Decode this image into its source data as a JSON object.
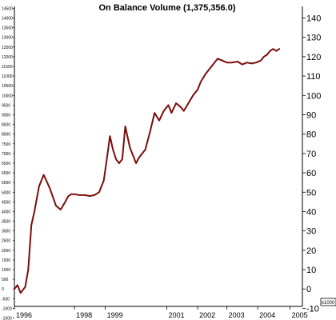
{
  "chart_data": {
    "type": "line",
    "title": "On Balance Volume (1,375,356.0)",
    "xlabel": "",
    "ylabel": "",
    "y_unit_label": "x1000",
    "ylim": [
      -9,
      146
    ],
    "xlim": [
      1996.0,
      2005.35
    ],
    "y_right_ticks": [
      -10,
      0,
      10,
      20,
      30,
      40,
      50,
      60,
      70,
      80,
      90,
      100,
      110,
      120,
      130,
      140
    ],
    "y_left_ticks": [
      "14500",
      "14000",
      "13500",
      "13000",
      "12500",
      "12000",
      "11500",
      "11000",
      "10500",
      "10000",
      "9500",
      "9000",
      "8500",
      "8000",
      "7500",
      "7000",
      "6500",
      "6000",
      "5500",
      "5000",
      "4500",
      "4000",
      "3500",
      "3000",
      "2500",
      "2000",
      "1500",
      "1000",
      "500",
      "0",
      "-500",
      "-1000",
      "-1500"
    ],
    "x_ticks": [
      "1996",
      "1998",
      "1999",
      "2001",
      "2002",
      "2003",
      "2004",
      "2005"
    ],
    "x_tick_values": [
      1996.0,
      1997.95,
      1998.95,
      2000.95,
      2001.95,
      2002.9,
      2003.9,
      2004.95
    ],
    "grid": false,
    "line_color": "#7a0c0c",
    "series": [
      {
        "x": [
          1996.0,
          1996.1,
          1996.2,
          1996.35,
          1996.45,
          1996.55,
          1996.65,
          1996.8,
          1996.95,
          1997.15,
          1997.35,
          1997.5,
          1997.65,
          1997.75,
          1997.85,
          1997.95,
          1998.1,
          1998.3,
          1998.45,
          1998.6,
          1998.75,
          1998.9,
          1999.0,
          1999.1,
          1999.2,
          1999.3,
          1999.4,
          1999.5,
          1999.6,
          1999.75,
          1999.85,
          1999.95,
          2000.05,
          2000.25,
          2000.4,
          2000.55,
          2000.7,
          2000.85,
          2001.0,
          2001.1,
          2001.25,
          2001.4,
          2001.5,
          2001.65,
          2001.8,
          2001.95,
          2002.05,
          2002.2,
          2002.4,
          2002.6,
          2002.75,
          2002.9,
          2003.05,
          2003.25,
          2003.4,
          2003.55,
          2003.7,
          2003.85,
          2004.0,
          2004.1,
          2004.2,
          2004.3,
          2004.4,
          2004.5,
          2004.6
        ],
        "values": [
          0,
          2,
          -2,
          1,
          10,
          33,
          40,
          53,
          59,
          52,
          43,
          41,
          45,
          48,
          49,
          49,
          48.5,
          48.5,
          48,
          48.5,
          50,
          56,
          67,
          79,
          72,
          67,
          65,
          67,
          84,
          73,
          69,
          65,
          68,
          72,
          81,
          91,
          87,
          92,
          95,
          91,
          96,
          94,
          92,
          96,
          100,
          103,
          107,
          111,
          115,
          119,
          118,
          117,
          117,
          117.5,
          116,
          117,
          116.5,
          117,
          118,
          120,
          121,
          123,
          124,
          123,
          124
        ]
      }
    ]
  }
}
